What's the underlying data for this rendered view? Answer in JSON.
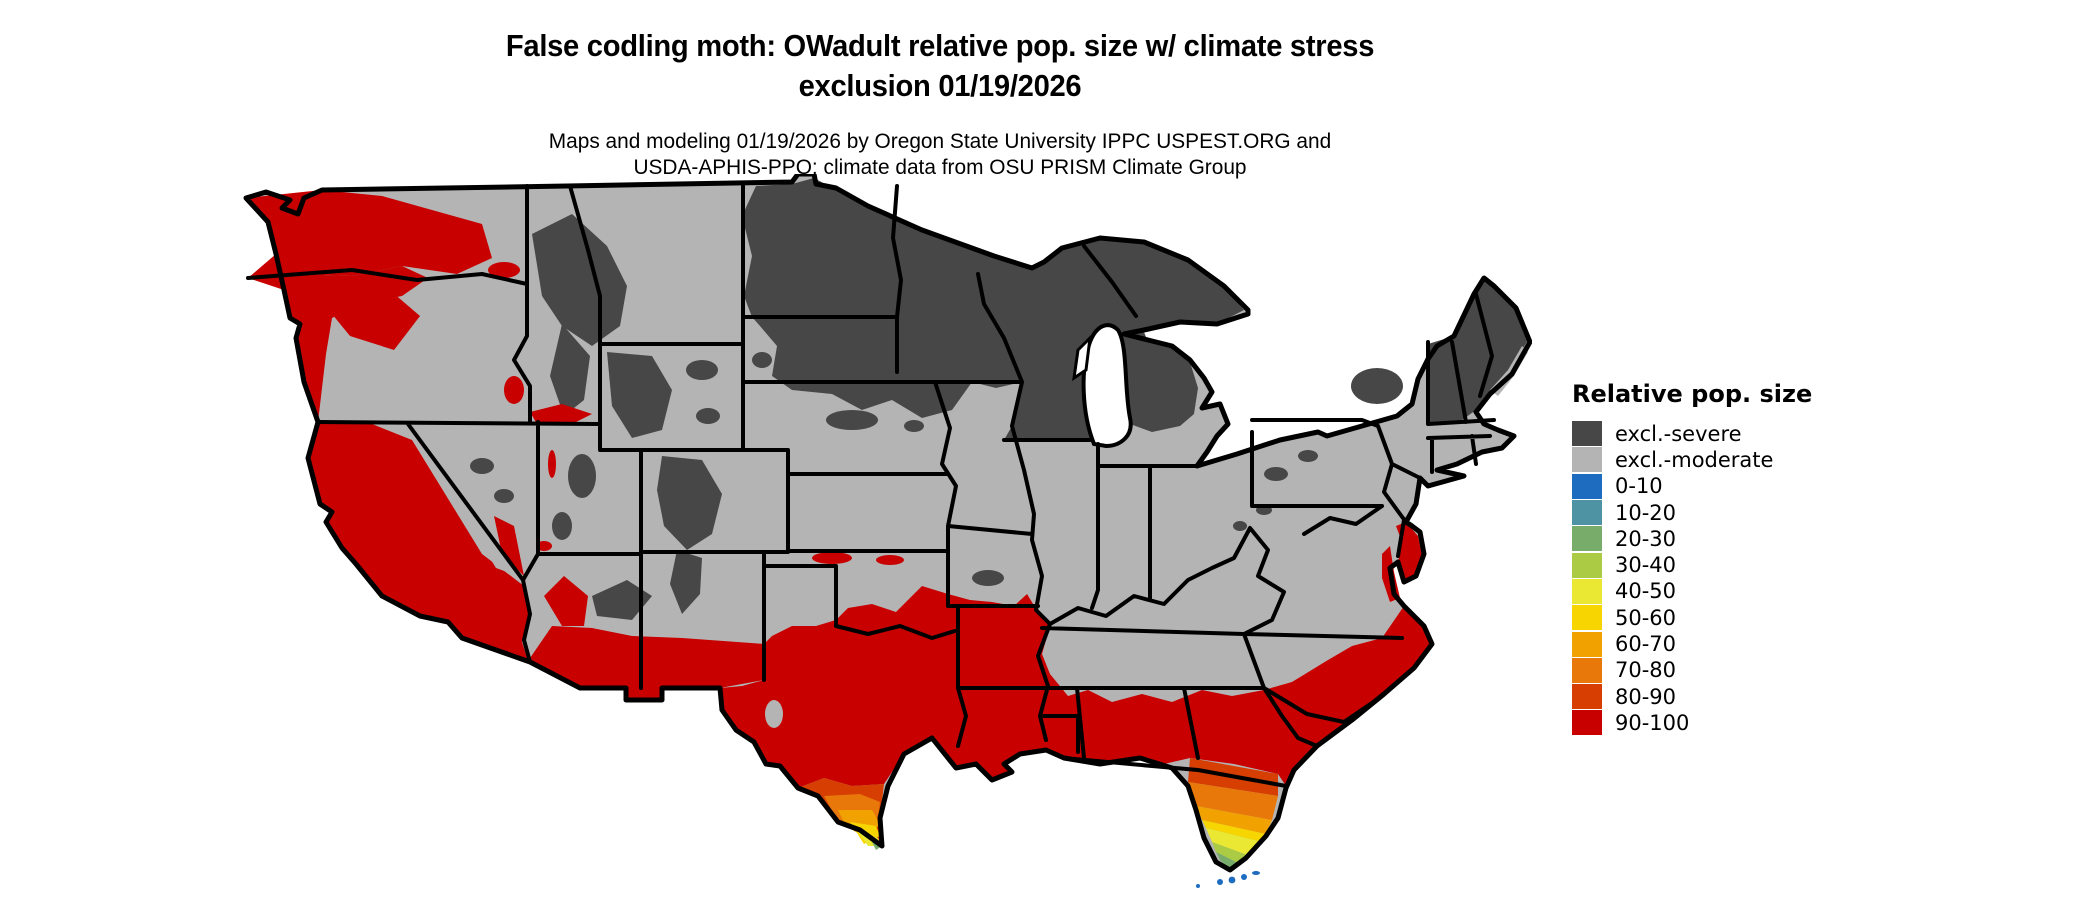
{
  "title": {
    "line1": "False codling moth: OWadult relative pop. size w/ climate stress",
    "line2": "exclusion 01/19/2026"
  },
  "subtitle": {
    "line1": "Maps and modeling 01/19/2026 by Oregon State University IPPC USPEST.ORG and",
    "line2": "USDA-APHIS-PPQ; climate data from OSU PRISM Climate Group"
  },
  "legend": {
    "title": "Relative pop. size",
    "items": [
      {
        "label": "excl.-severe",
        "color": "#474747"
      },
      {
        "label": "excl.-moderate",
        "color": "#B4B4B4"
      },
      {
        "label": "0-10",
        "color": "#1D6CC0"
      },
      {
        "label": "10-20",
        "color": "#4D93A3"
      },
      {
        "label": "20-30",
        "color": "#77AC6A"
      },
      {
        "label": "30-40",
        "color": "#ABCB44"
      },
      {
        "label": "40-50",
        "color": "#EBE833"
      },
      {
        "label": "50-60",
        "color": "#F7D500"
      },
      {
        "label": "60-70",
        "color": "#F2A200"
      },
      {
        "label": "70-80",
        "color": "#E87809"
      },
      {
        "label": "80-90",
        "color": "#D63E02"
      },
      {
        "label": "90-100",
        "color": "#C80000"
      }
    ]
  },
  "map": {
    "background": "#FFFFFF",
    "outline_color": "#000000",
    "state_border_color": "#000000",
    "water_color": "#FFFFFF",
    "colors": {
      "excl_severe": "#474747",
      "excl_moderate": "#B4B4B4",
      "b0_10": "#1D6CC0",
      "b10_20": "#4D93A3",
      "b20_30": "#77AC6A",
      "b30_40": "#ABCB44",
      "b40_50": "#EBE833",
      "b50_60": "#F7D500",
      "b60_70": "#F2A200",
      "b70_80": "#E87809",
      "b80_90": "#D63E02",
      "b90_100": "#C80000"
    }
  }
}
